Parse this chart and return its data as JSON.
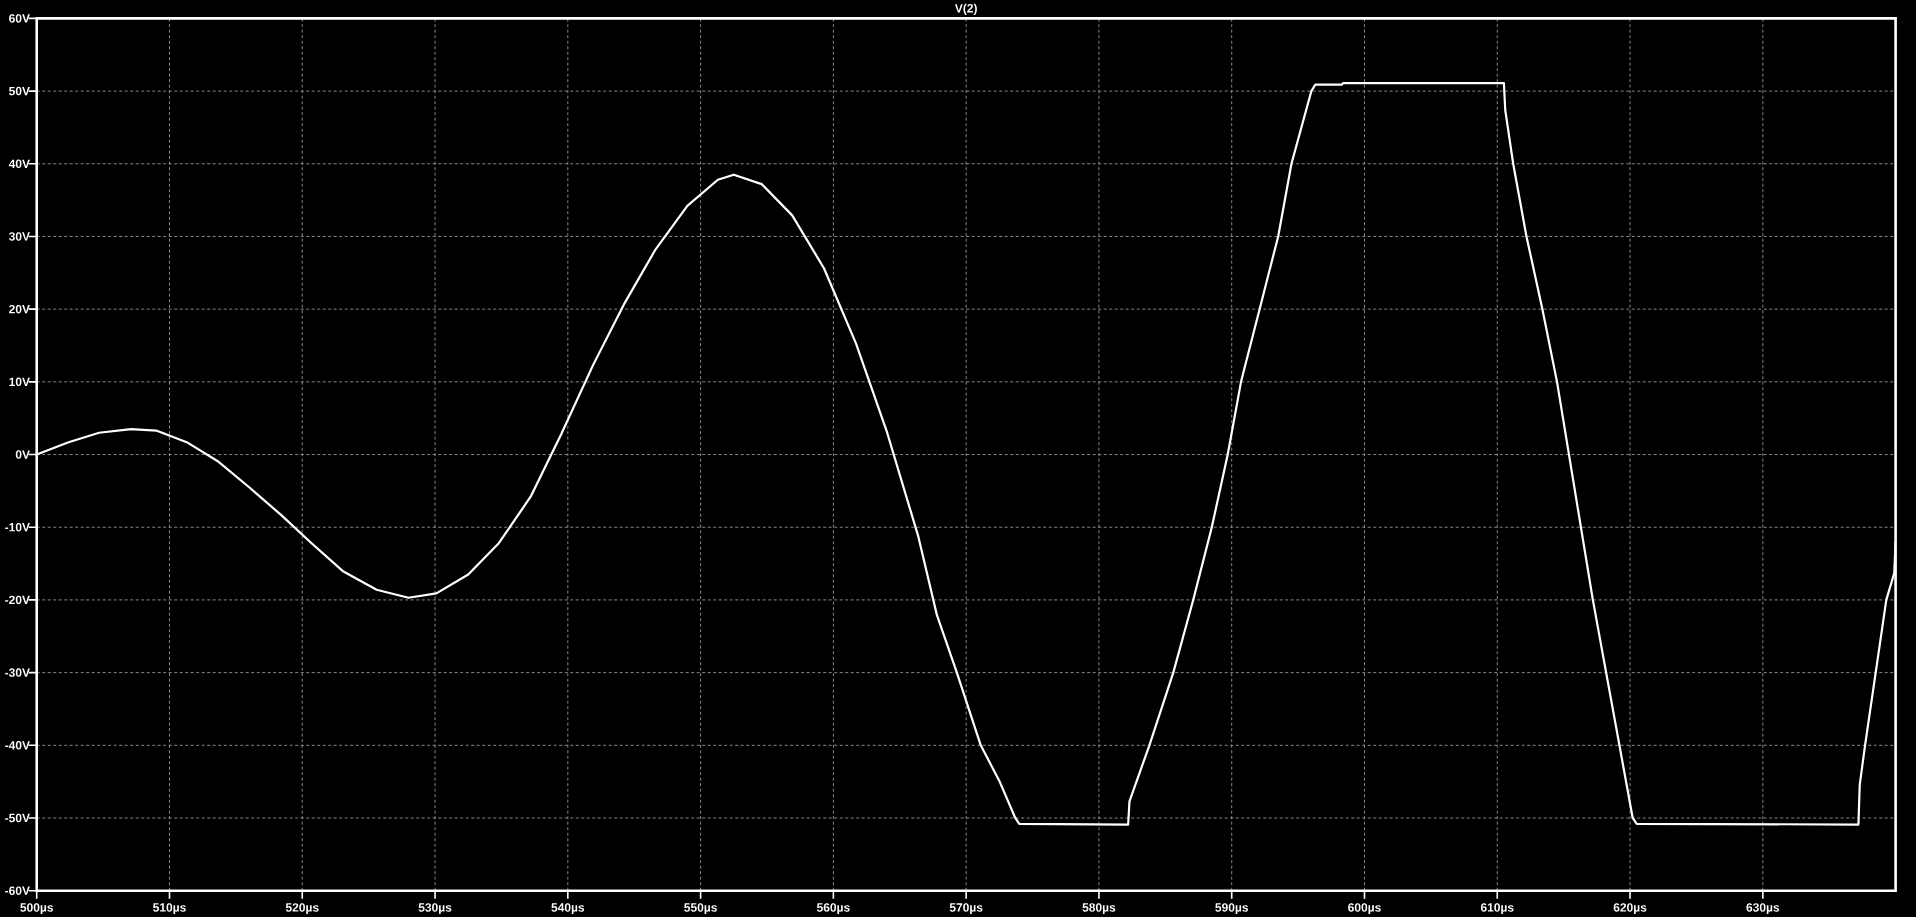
{
  "chart_data": {
    "type": "line",
    "title": "V(2)",
    "x": [
      500,
      502.4,
      504.7,
      507.1,
      509,
      511.3,
      513.7,
      516,
      518.4,
      520.7,
      523.1,
      525.6,
      528,
      530.1,
      532.5,
      534.8,
      537.2,
      539.5,
      541.9,
      544.3,
      546.6,
      549,
      551.3,
      552.5,
      554.6,
      556.9,
      559.3,
      561.7,
      564,
      566.4,
      567.8,
      569.3,
      571.1,
      572.5,
      573.7,
      574,
      582.2,
      582.3,
      583.8,
      585.6,
      587.1,
      588.5,
      589.7,
      590.7,
      592.1,
      593.5,
      594.5,
      596,
      596.3,
      598.3,
      598.4,
      610.5,
      610.6,
      611.2,
      612.2,
      613.4,
      614.5,
      615.4,
      616.3,
      617.2,
      618.2,
      619.2,
      620.2,
      620.5,
      637.2,
      637.3,
      637.7,
      638.5,
      639.3,
      639.9,
      640
    ],
    "series": [
      {
        "color": "#ffffff",
        "values": [
          0,
          1.7,
          3.0,
          3.5,
          3.3,
          1.7,
          -1.0,
          -4.5,
          -8.3,
          -12.2,
          -16.1,
          -18.6,
          -19.7,
          -19.1,
          -16.5,
          -12.2,
          -5.8,
          2.8,
          12.3,
          20.9,
          28.2,
          34.2,
          37.8,
          38.5,
          37.2,
          32.9,
          25.6,
          15.3,
          3.3,
          -11.3,
          -22.1,
          -30,
          -40,
          -44.9,
          -50,
          -50.8,
          -50.9,
          -47.7,
          -40,
          -30,
          -20,
          -10,
          0,
          10,
          20,
          30,
          40,
          50,
          50.9,
          50.9,
          51.1,
          51.1,
          47.4,
          40,
          30,
          20,
          10,
          0,
          -10,
          -20,
          -30,
          -40,
          -50,
          -50.8,
          -50.9,
          -45.4,
          -40,
          -30,
          -20,
          -16.3,
          -12
        ]
      }
    ],
    "xlim": [
      500,
      640
    ],
    "ylim": [
      -60,
      60
    ],
    "xticks": [
      {
        "value": 500,
        "label": "500µs"
      },
      {
        "value": 510,
        "label": "510µs"
      },
      {
        "value": 520,
        "label": "520µs"
      },
      {
        "value": 530,
        "label": "530µs"
      },
      {
        "value": 540,
        "label": "540µs"
      },
      {
        "value": 550,
        "label": "550µs"
      },
      {
        "value": 560,
        "label": "560µs"
      },
      {
        "value": 570,
        "label": "570µs"
      },
      {
        "value": 580,
        "label": "580µs"
      },
      {
        "value": 590,
        "label": "590µs"
      },
      {
        "value": 600,
        "label": "600µs"
      },
      {
        "value": 610,
        "label": "610µs"
      },
      {
        "value": 620,
        "label": "620µs"
      },
      {
        "value": 630,
        "label": "630µs"
      }
    ],
    "yticks": [
      {
        "value": 60,
        "label": "60V"
      },
      {
        "value": 50,
        "label": "50V"
      },
      {
        "value": 40,
        "label": "40V"
      },
      {
        "value": 30,
        "label": "30V"
      },
      {
        "value": 20,
        "label": "20V"
      },
      {
        "value": 10,
        "label": "10V"
      },
      {
        "value": 0,
        "label": "0V"
      },
      {
        "value": -10,
        "label": "-10V"
      },
      {
        "value": -20,
        "label": "-20V"
      },
      {
        "value": -30,
        "label": "-30V"
      },
      {
        "value": -40,
        "label": "-40V"
      },
      {
        "value": -50,
        "label": "-50V"
      },
      {
        "value": -60,
        "label": "-60V"
      }
    ],
    "grid": true,
    "marker": "none",
    "line_style": "solid"
  }
}
